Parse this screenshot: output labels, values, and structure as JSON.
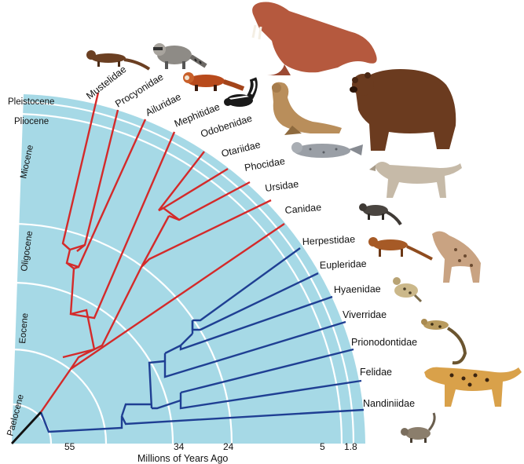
{
  "diagram": {
    "x_axis_title": "Millions of Years Ago",
    "ticks": [
      "55",
      "34",
      "24",
      "5",
      "1.8"
    ],
    "epochs": [
      "Paelocene",
      "Eocene",
      "Oligocene",
      "Miocene",
      "Pliocene",
      "Pleistocene"
    ],
    "taxa": [
      {
        "name": "Mustelidae",
        "suborder": "caniform"
      },
      {
        "name": "Procyonidae",
        "suborder": "caniform"
      },
      {
        "name": "Ailuridae",
        "suborder": "caniform"
      },
      {
        "name": "Mephitidae",
        "suborder": "caniform"
      },
      {
        "name": "Odobenidae",
        "suborder": "caniform"
      },
      {
        "name": "Otariidae",
        "suborder": "caniform"
      },
      {
        "name": "Phocidae",
        "suborder": "caniform"
      },
      {
        "name": "Ursidae",
        "suborder": "caniform"
      },
      {
        "name": "Canidae",
        "suborder": "caniform"
      },
      {
        "name": "Herpestidae",
        "suborder": "feliform"
      },
      {
        "name": "Eupleridae",
        "suborder": "feliform"
      },
      {
        "name": "Hyaenidae",
        "suborder": "feliform"
      },
      {
        "name": "Viverridae",
        "suborder": "feliform"
      },
      {
        "name": "Prionodontidae",
        "suborder": "feliform"
      },
      {
        "name": "Felidae",
        "suborder": "feliform"
      },
      {
        "name": "Nandiniidae",
        "suborder": "feliform"
      }
    ],
    "animals": [
      "mustelid",
      "raccoon",
      "red-panda",
      "skunk",
      "walrus",
      "sea-lion",
      "seal",
      "bear",
      "wolf",
      "mongoose",
      "fossa",
      "hyena",
      "civet",
      "linsang",
      "jaguar",
      "palm-civet"
    ],
    "colors": {
      "background_fan": "#a6d9e6",
      "caniform_branch": "#d42a2a",
      "feliform_branch": "#1f3f93",
      "root_branch": "#111111",
      "epoch_arc": "#ffffff"
    }
  }
}
